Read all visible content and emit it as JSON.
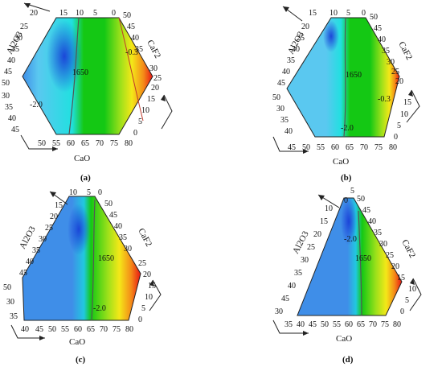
{
  "figure": {
    "panels": [
      {
        "label": "(a)",
        "sides": {
          "top": [
            "20",
            "15",
            "10",
            "5",
            "0"
          ],
          "left": [
            "25",
            "30",
            "35",
            "40",
            "45",
            "50",
            "30",
            "35",
            "40",
            "45"
          ],
          "right": [
            "50",
            "45",
            "40",
            "35",
            "30",
            "25",
            "20",
            "15",
            "10",
            "5",
            "0"
          ],
          "bottom": [
            "50",
            "55",
            "60",
            "65",
            "70",
            "75",
            "80"
          ]
        },
        "axes": {
          "left": "Al2O3",
          "right": "CaF2",
          "bottom": "CaO"
        },
        "contours": [
          "1650",
          "-2.0",
          "-0.3"
        ]
      },
      {
        "label": "(b)",
        "sides": {
          "top": [
            "15",
            "10",
            "5",
            "0"
          ],
          "left": [
            "20",
            "25",
            "30",
            "35",
            "40",
            "45",
            "50",
            "30",
            "35",
            "40"
          ],
          "right": [
            "50",
            "45",
            "40",
            "35",
            "30",
            "25",
            "20",
            "15",
            "10",
            "5",
            "0"
          ],
          "bottom": [
            "45",
            "50",
            "55",
            "60",
            "65",
            "70",
            "75",
            "80"
          ]
        },
        "axes": {
          "left": "Al2O3",
          "right": "CaF2",
          "bottom": "CaO"
        },
        "contours": [
          "1650",
          "-2.0",
          "-0.3"
        ]
      },
      {
        "label": "(c)",
        "sides": {
          "top": [
            "10",
            "5",
            "0"
          ],
          "left": [
            "15",
            "20",
            "25",
            "30",
            "35",
            "40",
            "45",
            "50",
            "30",
            "35"
          ],
          "right": [
            "50",
            "45",
            "40",
            "35",
            "30",
            "25",
            "20",
            "15",
            "10",
            "5",
            "0"
          ],
          "bottom": [
            "40",
            "45",
            "50",
            "55",
            "60",
            "65",
            "70",
            "75",
            "80"
          ]
        },
        "axes": {
          "left": "Al2O3",
          "right": "CaF2",
          "bottom": "CaO"
        },
        "contours": [
          "1650",
          "-2.0"
        ]
      },
      {
        "label": "(d)",
        "sides": {
          "top": [
            "5",
            "0"
          ],
          "left": [
            "10",
            "15",
            "20",
            "25",
            "30",
            "35",
            "40",
            "45",
            "30"
          ],
          "right": [
            "50",
            "45",
            "40",
            "35",
            "30",
            "25",
            "20",
            "15",
            "10",
            "5",
            "0"
          ],
          "bottom": [
            "35",
            "40",
            "45",
            "50",
            "55",
            "60",
            "65",
            "70",
            "75",
            "80"
          ]
        },
        "axes": {
          "left": "Al2O3",
          "right": "CaF2",
          "bottom": "CaO"
        },
        "contours": [
          "-2.0",
          "1650"
        ]
      }
    ]
  },
  "colors": {
    "deep_blue": "#1a3fd8",
    "blue": "#3f8ee8",
    "light_blue": "#5ac8f0",
    "cyan": "#21e0e0",
    "green": "#14c814",
    "light_green": "#9ae01a",
    "yellow": "#f4e818",
    "orange": "#f48a18",
    "red": "#e81414",
    "contour": "#555555",
    "red_line": "#c0392b"
  }
}
